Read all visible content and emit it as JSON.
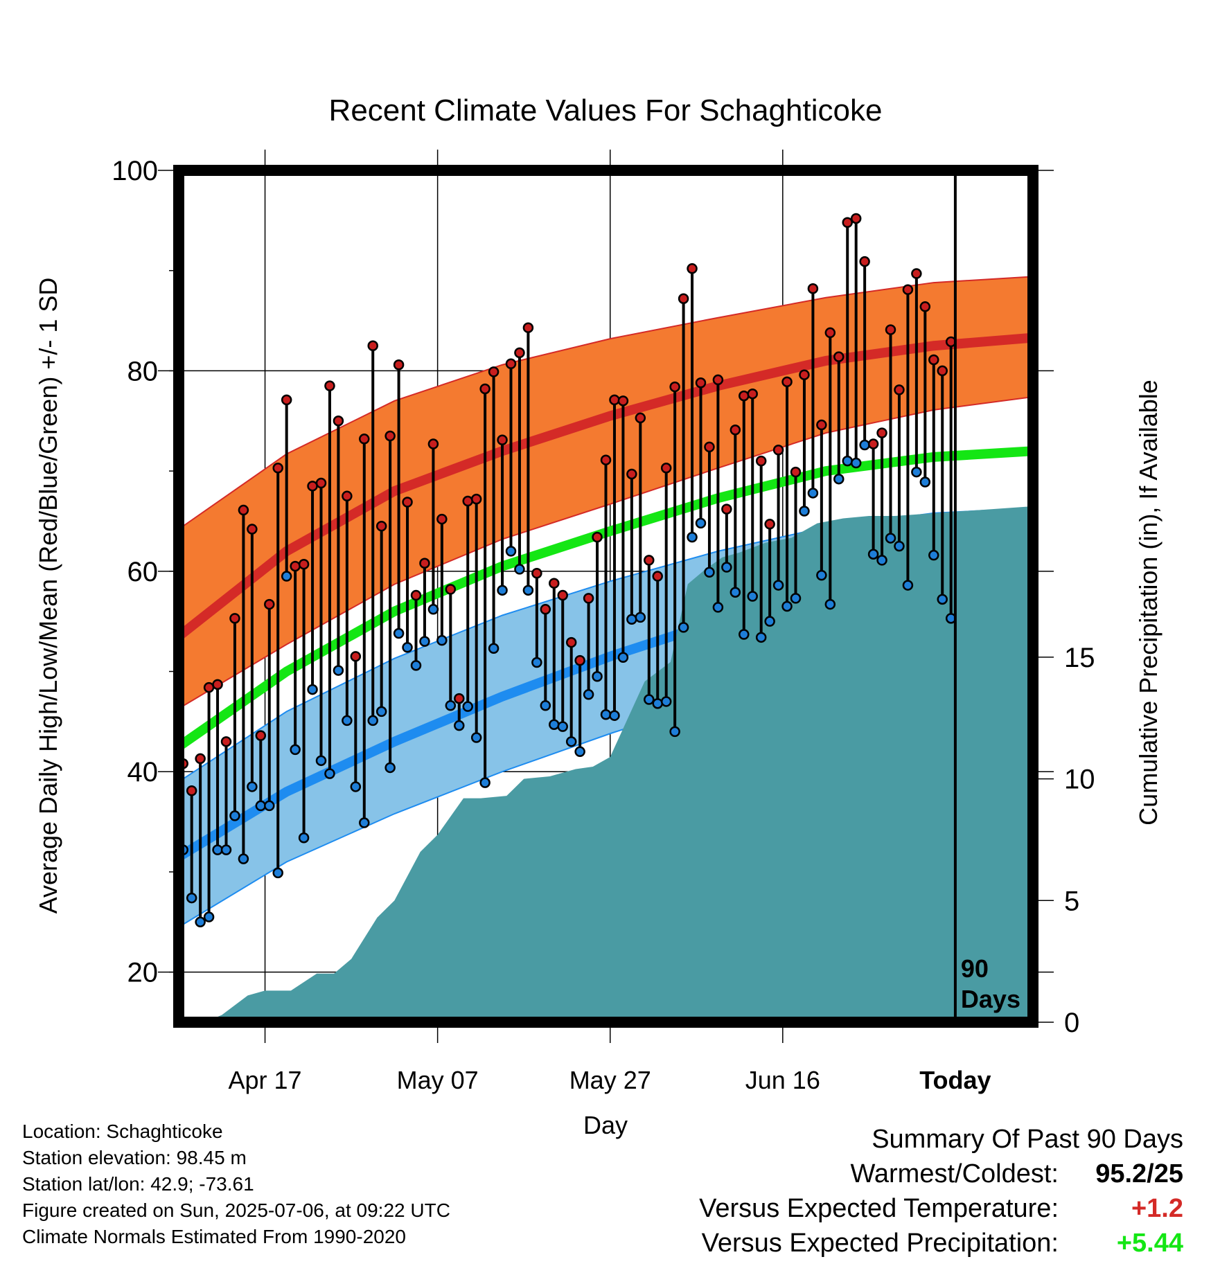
{
  "chart_data": {
    "type": "line",
    "title": "Recent Climate Values For Schaghticoke",
    "xlabel": "Day",
    "ylabel_left": "Average Daily High/Low/Mean (Red/Blue/Green) +/- 1 SD",
    "ylabel_right": "Cumulative Precipitation (in), If Available",
    "x_range_days": [
      -90,
      9
    ],
    "x_ticks": [
      {
        "day": -80,
        "label": "Apr 17"
      },
      {
        "day": -60,
        "label": "May 07"
      },
      {
        "day": -40,
        "label": "May 27"
      },
      {
        "day": -20,
        "label": "Jun 16"
      },
      {
        "day": 0,
        "label": "Today"
      }
    ],
    "y_left_range": [
      15,
      100
    ],
    "y_left_ticks": [
      20,
      40,
      60,
      80,
      100
    ],
    "y_right_range": [
      0,
      35
    ],
    "y_right_ticks": [
      0,
      5,
      10,
      15
    ],
    "today_marker_label": "90 Days",
    "normals": {
      "high_mean": [
        53.5,
        62.0,
        68.0,
        72.0,
        75.5,
        78.5,
        81.0,
        82.5,
        83.3
      ],
      "high_upper": [
        64.2,
        71.7,
        77.0,
        80.6,
        83.2,
        85.3,
        87.3,
        88.8,
        89.4
      ],
      "high_lower": [
        46.3,
        52.7,
        58.7,
        63.2,
        66.7,
        70.3,
        73.8,
        76.1,
        77.4
      ],
      "mean": [
        42.5,
        50.0,
        56.0,
        60.5,
        64.0,
        67.3,
        70.0,
        71.4,
        72.0
      ],
      "low_mean": [
        31.5,
        38.0,
        43.0,
        47.5,
        51.5,
        55.0,
        57.8,
        59.8,
        60.5
      ],
      "low_upper": [
        39.0,
        46.0,
        51.3,
        55.6,
        59.0,
        62.0,
        64.4,
        65.8,
        66.3
      ],
      "low_lower": [
        24.5,
        31.0,
        35.8,
        40.0,
        43.8,
        47.3,
        50.8,
        54.0,
        55.2
      ],
      "normals_x_days": [
        -90,
        -77.5,
        -65,
        -52.5,
        -40,
        -27.5,
        -15,
        -2.5,
        9
      ]
    },
    "daily": {
      "start_day": -90,
      "high": [
        40.8,
        38.1,
        41.3,
        48.4,
        48.7,
        43.0,
        55.3,
        66.1,
        64.2,
        43.6,
        56.7,
        70.3,
        77.1,
        60.5,
        60.7,
        68.5,
        68.8,
        78.5,
        75.0,
        67.5,
        51.5,
        73.2,
        82.5,
        64.5,
        73.5,
        80.6,
        66.9,
        57.6,
        60.8,
        72.7,
        65.2,
        58.2,
        47.3,
        67.0,
        67.2,
        78.2,
        79.9,
        73.1,
        80.7,
        81.8,
        84.3,
        59.8,
        56.2,
        58.8,
        57.6,
        52.9,
        51.1,
        57.3,
        63.4,
        71.1,
        77.1,
        77.0,
        69.7,
        75.3,
        61.1,
        59.5,
        70.3,
        78.4,
        87.2,
        90.2,
        78.8,
        72.4,
        79.1,
        66.2,
        74.1,
        77.5,
        77.7,
        71.0,
        64.7,
        72.1,
        78.9,
        69.9,
        79.6,
        88.2,
        74.6,
        83.8,
        81.4,
        94.8,
        95.2,
        90.9,
        72.7,
        73.8,
        84.1,
        78.1,
        88.1,
        89.7,
        86.4,
        81.1,
        80.0,
        82.9
      ],
      "low": [
        32.2,
        27.4,
        25.0,
        25.5,
        32.2,
        32.2,
        35.6,
        31.3,
        38.5,
        36.6,
        36.6,
        29.9,
        59.5,
        42.2,
        33.4,
        48.2,
        41.1,
        39.8,
        50.1,
        45.1,
        38.5,
        34.9,
        45.1,
        46.0,
        40.4,
        53.8,
        52.4,
        50.6,
        53.0,
        56.2,
        53.1,
        46.6,
        44.6,
        46.5,
        43.4,
        38.9,
        52.3,
        58.1,
        62.0,
        60.2,
        58.1,
        50.9,
        46.6,
        44.7,
        44.5,
        43.0,
        42.0,
        47.7,
        49.5,
        45.7,
        45.6,
        51.4,
        55.2,
        55.4,
        47.2,
        46.8,
        47.0,
        44.0,
        54.4,
        63.4,
        64.8,
        59.9,
        56.4,
        60.4,
        57.9,
        53.7,
        57.5,
        53.4,
        55.0,
        58.6,
        56.5,
        57.3,
        66.0,
        67.8,
        59.6,
        56.7,
        69.2,
        71.0,
        70.8,
        72.6,
        61.7,
        61.1,
        63.3,
        62.5,
        58.6,
        69.9,
        68.9,
        61.6,
        57.2,
        55.3
      ]
    },
    "precipitation_cumulative": {
      "x_days": [
        -90,
        -87,
        -85,
        -82,
        -80,
        -77,
        -74,
        -72,
        -70,
        -67,
        -65,
        -62,
        -60,
        -57,
        -55,
        -52,
        -50,
        -47,
        -44,
        -42,
        -40,
        -36,
        -33,
        -31,
        -29,
        -27,
        -25,
        -22,
        -19,
        -16,
        -13,
        -10,
        -7,
        -3,
        9
      ],
      "values": [
        0.0,
        0.0,
        0.3,
        1.1,
        1.3,
        1.3,
        2.0,
        2.0,
        2.6,
        4.3,
        5.0,
        7.0,
        7.7,
        9.2,
        9.2,
        9.3,
        10.0,
        10.1,
        10.4,
        10.5,
        10.9,
        14.0,
        14.8,
        18.0,
        18.6,
        19.1,
        19.3,
        19.7,
        19.9,
        20.5,
        20.7,
        20.8,
        20.8,
        20.9,
        21.2
      ]
    }
  },
  "info": {
    "location": "Location: Schaghticoke",
    "elevation": "Station elevation: 98.45 m",
    "latlon": "Station lat/lon: 42.9; -73.61",
    "created": "Figure created on Sun, 2025-07-06, at 09:22 UTC",
    "normals": "Climate Normals Estimated From 1990-2020"
  },
  "summary": {
    "heading": "Summary Of Past 90 Days",
    "warmest_coldest_label": "Warmest/Coldest:",
    "warmest_coldest_value": "95.2/25",
    "temp_label": "Versus Expected Temperature:",
    "temp_value": "+1.2",
    "precip_label": "Versus Expected Precipitation:",
    "precip_value": "+5.44"
  },
  "colors": {
    "high_band": "#f47a30",
    "high_line": "#d42a27",
    "mean_line": "#14e614",
    "low_band": "#87c3e8",
    "low_line": "#1e8cf0",
    "precip_fill": "#4a9ba3",
    "high_dot": "#c81e1e",
    "low_dot": "#1e7ed8",
    "temp_positive": "#d42a27",
    "precip_positive": "#14e614"
  }
}
